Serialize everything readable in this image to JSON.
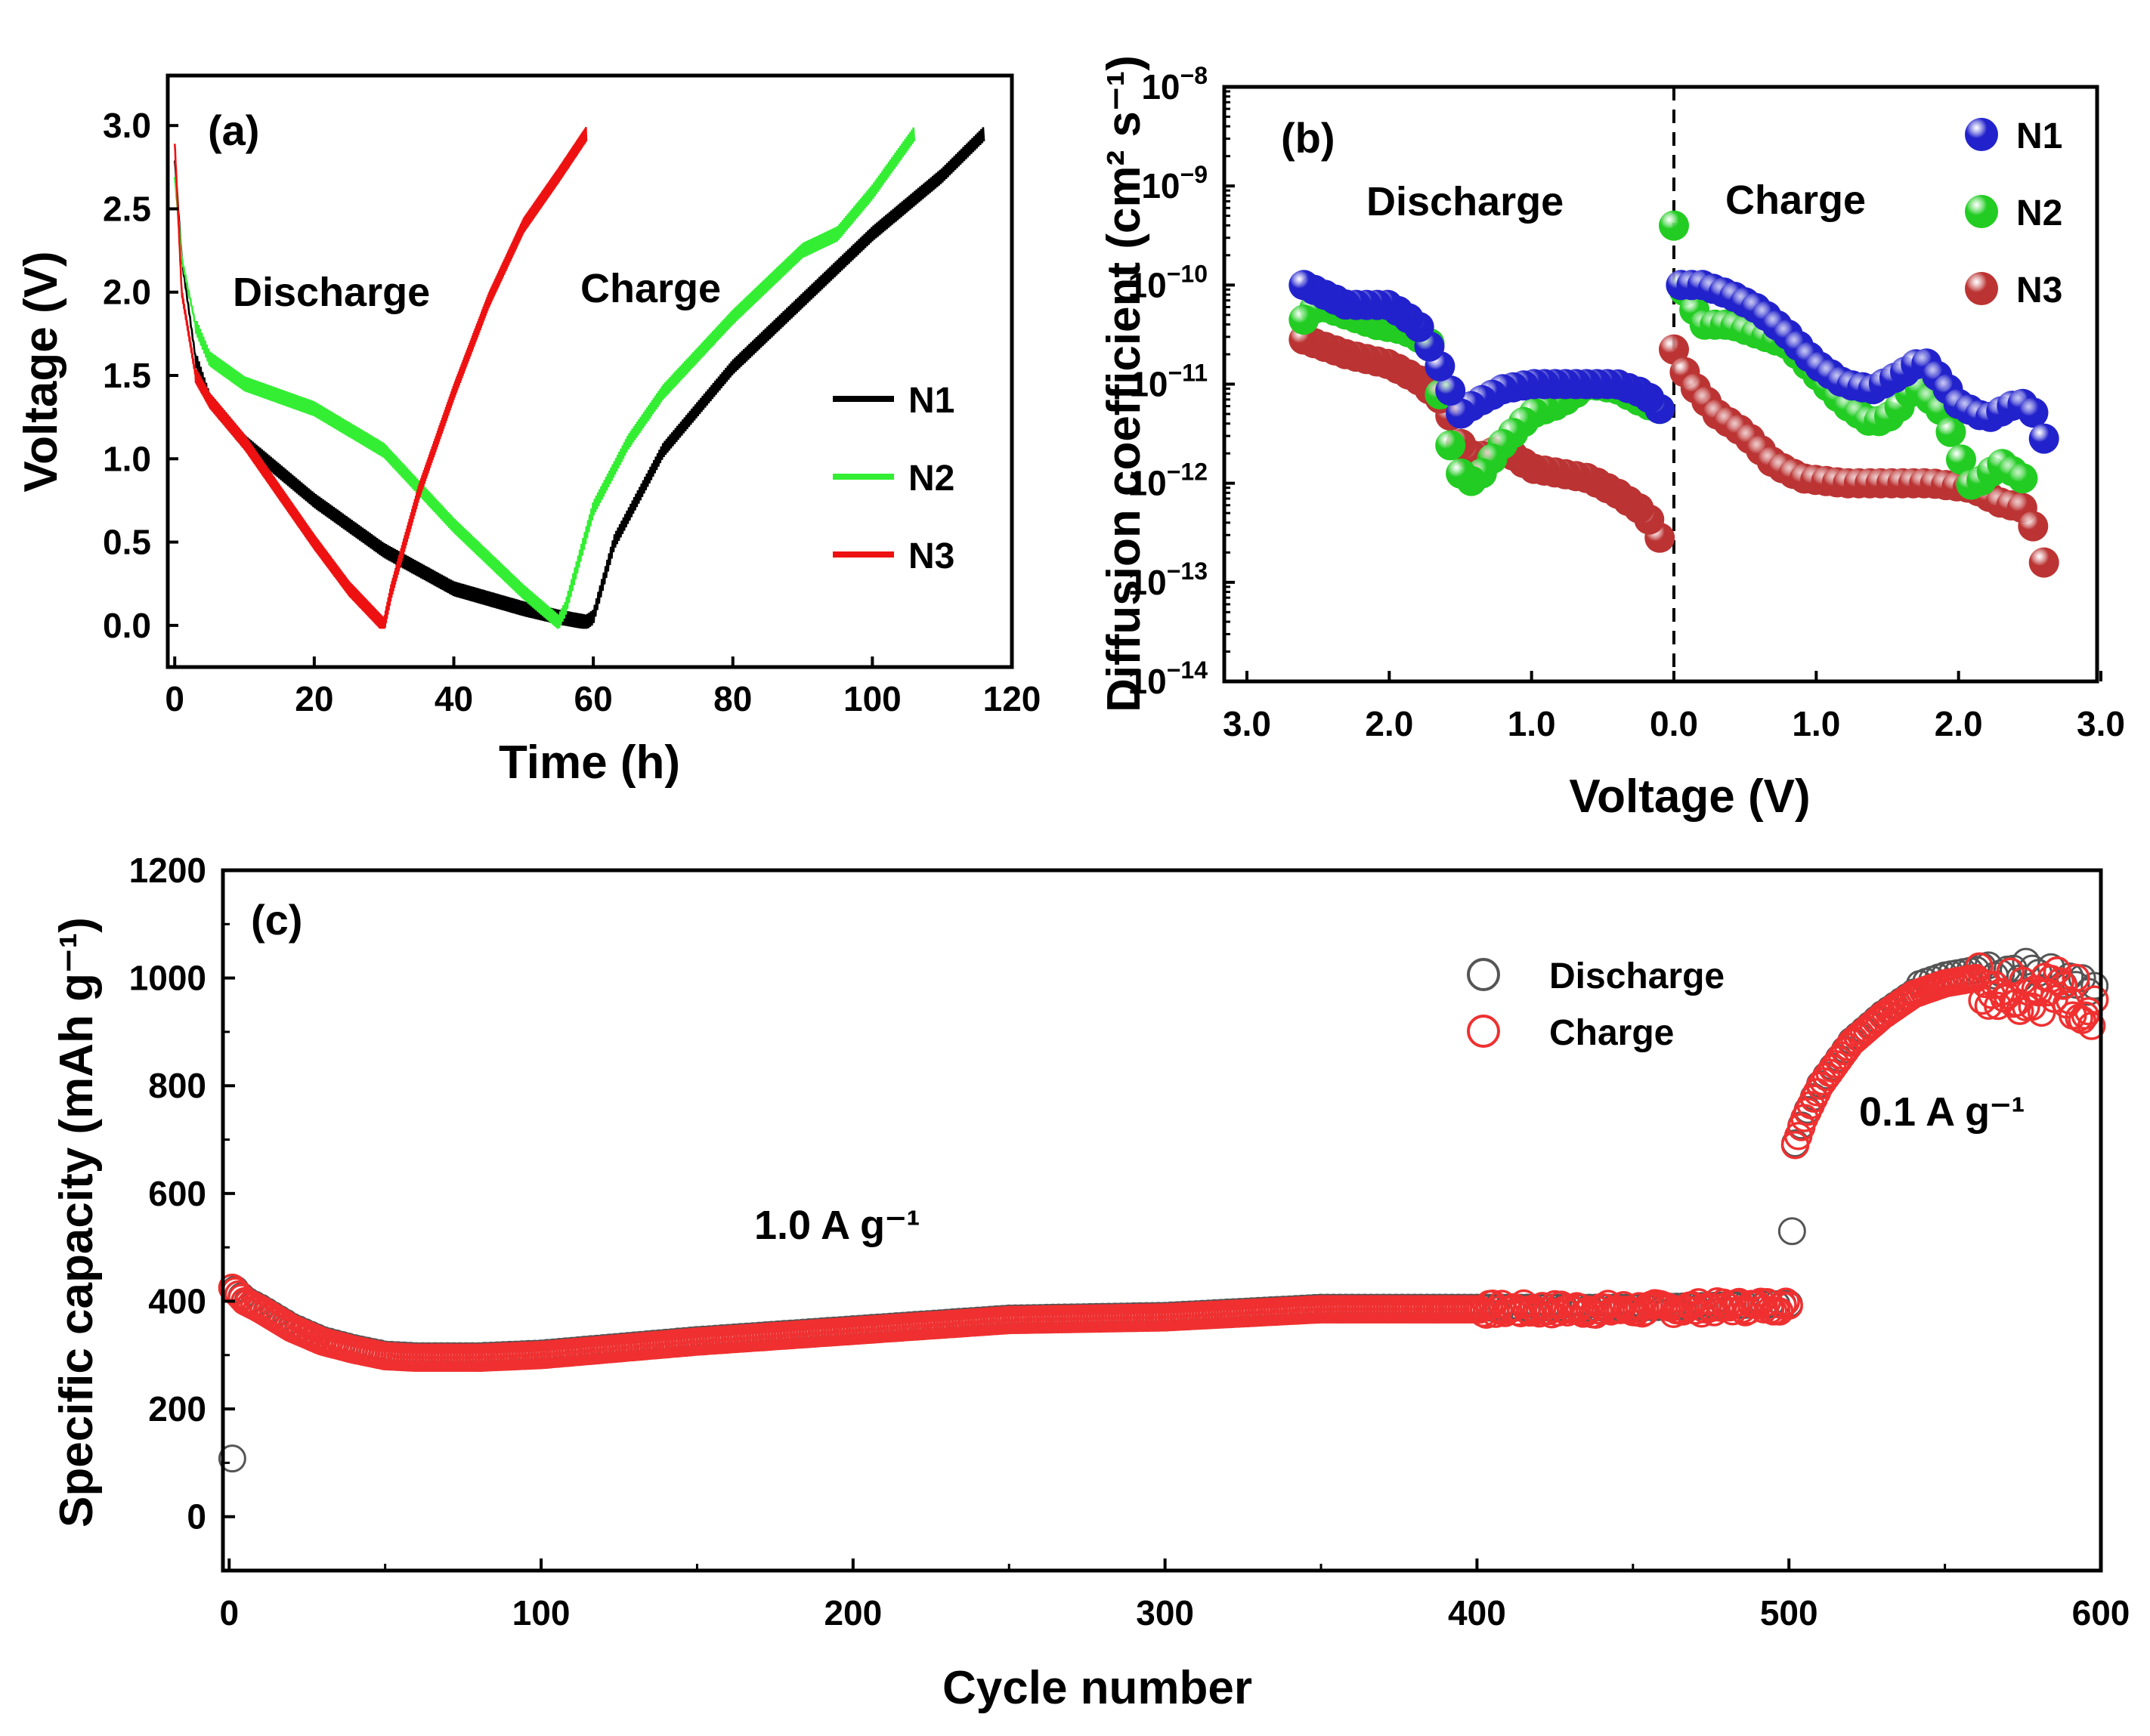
{
  "chart_data": [
    {
      "panel": "(a)",
      "type": "line",
      "xlabel": "Time (h)",
      "ylabel": "Voltage (V)",
      "xlim": [
        -1,
        120
      ],
      "ylim": [
        -0.25,
        3.3
      ],
      "xticks": [
        0,
        20,
        40,
        60,
        80,
        100,
        120
      ],
      "yticks": [
        0.0,
        0.5,
        1.0,
        1.5,
        2.0,
        2.5,
        3.0
      ],
      "ytick_labels": [
        "0.0",
        "0.5",
        "1.0",
        "1.5",
        "2.0",
        "2.5",
        "3.0"
      ],
      "annotations": [
        "Discharge",
        "Charge"
      ],
      "legend": [
        "N1",
        "N2",
        "N3"
      ],
      "series": [
        {
          "name": "N1",
          "color": "#000000",
          "x": [
            0,
            1,
            3,
            5,
            10,
            20,
            30,
            40,
            50,
            55,
            59,
            60,
            63,
            70,
            80,
            90,
            100,
            110,
            116
          ],
          "y": [
            2.8,
            2.2,
            1.6,
            1.35,
            1.1,
            0.75,
            0.45,
            0.22,
            0.1,
            0.05,
            0.02,
            0.05,
            0.5,
            1.05,
            1.55,
            1.95,
            2.35,
            2.7,
            2.95
          ]
        },
        {
          "name": "N2",
          "color": "#33ee33",
          "x": [
            0,
            1,
            3,
            5,
            10,
            20,
            30,
            40,
            50,
            55,
            56,
            60,
            65,
            70,
            80,
            90,
            95,
            100,
            106
          ],
          "y": [
            2.7,
            2.2,
            1.8,
            1.6,
            1.45,
            1.3,
            1.05,
            0.6,
            0.2,
            0.02,
            0.1,
            0.7,
            1.1,
            1.4,
            1.85,
            2.25,
            2.35,
            2.6,
            2.95
          ]
        },
        {
          "name": "N3",
          "color": "#ee1111",
          "x": [
            0,
            1,
            3,
            5,
            10,
            15,
            20,
            25,
            30,
            31,
            35,
            40,
            45,
            50,
            55,
            59
          ],
          "y": [
            2.9,
            2.0,
            1.5,
            1.35,
            1.1,
            0.8,
            0.5,
            0.22,
            0.0,
            0.2,
            0.8,
            1.4,
            1.95,
            2.4,
            2.7,
            2.95
          ]
        }
      ]
    },
    {
      "panel": "(b)",
      "type": "scatter",
      "xlabel": "Voltage (V)",
      "ylabel": "Diffusion coefficient (cm² s⁻¹)",
      "yscale": "log",
      "ylim": [
        -14,
        -8
      ],
      "ytick_exponents": [
        -8,
        -9,
        -10,
        -11,
        -12,
        -13,
        -14
      ],
      "ytick_base": "10",
      "xtick_labels": [
        "3.0",
        "2.0",
        "1.0",
        "0.0",
        "1.0",
        "2.0",
        "3.0"
      ],
      "xlim_note": "discharge side reversed 3.0→0.0, charge side 0.0→3.0",
      "annotations": [
        "Discharge",
        "Charge"
      ],
      "legend": [
        "N1",
        "N2",
        "N3"
      ],
      "series": [
        {
          "name": "N1",
          "color": "#2222cc",
          "discharge": {
            "v": [
              2.6,
              2.3,
              2.0,
              1.8,
              1.65,
              1.5,
              1.4,
              1.2,
              1.0,
              0.8,
              0.6,
              0.4,
              0.2,
              0.1
            ],
            "logD": [
              -10.0,
              -10.2,
              -10.2,
              -10.4,
              -10.8,
              -11.3,
              -11.2,
              -11.05,
              -11.0,
              -11.0,
              -11.0,
              -11.0,
              -11.1,
              -11.25
            ]
          },
          "charge": {
            "v": [
              0.05,
              0.2,
              0.4,
              0.6,
              0.8,
              1.0,
              1.2,
              1.4,
              1.6,
              1.75,
              1.9,
              2.0,
              2.2,
              2.4,
              2.5,
              2.6
            ],
            "logD": [
              -10.0,
              -10.0,
              -10.1,
              -10.25,
              -10.5,
              -10.8,
              -11.0,
              -11.05,
              -10.9,
              -10.75,
              -11.0,
              -11.2,
              -11.35,
              -11.2,
              -11.2,
              -11.55
            ]
          }
        },
        {
          "name": "N2",
          "color": "#22cc22",
          "discharge": {
            "v": [
              2.6,
              2.5,
              2.3,
              2.1,
              1.9,
              1.7,
              1.6,
              1.5,
              1.4,
              1.2,
              1.0,
              0.8,
              0.6,
              0.4,
              0.2,
              0.1
            ],
            "logD": [
              -10.35,
              -10.2,
              -10.3,
              -10.4,
              -10.45,
              -10.6,
              -11.5,
              -11.9,
              -12.0,
              -11.6,
              -11.3,
              -11.2,
              -11.0,
              -11.05,
              -11.2,
              -11.25
            ]
          },
          "charge": {
            "v": [
              0.0,
              0.05,
              0.2,
              0.4,
              0.6,
              0.8,
              1.0,
              1.2,
              1.4,
              1.55,
              1.7,
              1.9,
              2.0,
              2.1,
              2.3,
              2.45
            ],
            "logD": [
              -9.4,
              -10.0,
              -10.4,
              -10.4,
              -10.5,
              -10.6,
              -10.9,
              -11.2,
              -11.4,
              -11.3,
              -11.0,
              -11.3,
              -11.7,
              -12.05,
              -11.8,
              -11.95
            ]
          }
        },
        {
          "name": "N3",
          "color": "#bb3333",
          "discharge": {
            "v": [
              2.6,
              2.3,
              2.0,
              1.8,
              1.6,
              1.5,
              1.4,
              1.2,
              1.0,
              0.8,
              0.6,
              0.4,
              0.2,
              0.1
            ],
            "logD": [
              -10.55,
              -10.7,
              -10.8,
              -10.95,
              -11.2,
              -11.6,
              -11.75,
              -11.65,
              -11.85,
              -11.9,
              -11.95,
              -12.1,
              -12.3,
              -12.55
            ]
          },
          "charge": {
            "v": [
              0.0,
              0.1,
              0.3,
              0.5,
              0.7,
              0.9,
              1.2,
              1.5,
              1.8,
              2.1,
              2.3,
              2.45,
              2.55,
              2.6
            ],
            "logD": [
              -10.65,
              -10.95,
              -11.3,
              -11.5,
              -11.8,
              -11.95,
              -12.0,
              -12.0,
              -12.0,
              -12.05,
              -12.2,
              -12.25,
              -12.5,
              -12.8
            ]
          }
        }
      ]
    },
    {
      "panel": "(c)",
      "type": "scatter",
      "xlabel": "Cycle number",
      "ylabel": "Specific capacity (mAh g⁻¹)",
      "xlim": [
        -2,
        600
      ],
      "ylim": [
        -100,
        1200
      ],
      "xticks": [
        0,
        100,
        200,
        300,
        400,
        500,
        600
      ],
      "yticks": [
        0,
        200,
        400,
        600,
        800,
        1000,
        1200
      ],
      "annotations": [
        "1.0 A g⁻¹",
        "0.1 A g⁻¹"
      ],
      "legend": [
        "Discharge",
        "Charge"
      ],
      "discharge_outliers": [
        {
          "x": 1,
          "y": 108
        },
        {
          "x": 501,
          "y": 530
        }
      ],
      "capacity_profile": {
        "cycles": [
          1,
          5,
          10,
          20,
          30,
          40,
          50,
          60,
          80,
          100,
          150,
          200,
          250,
          300,
          350,
          400,
          450,
          500,
          502,
          505,
          510,
          520,
          530,
          540,
          550,
          560,
          570,
          580,
          590,
          598
        ],
        "capacity": [
          425,
          400,
          385,
          350,
          325,
          310,
          298,
          295,
          295,
          300,
          325,
          345,
          365,
          370,
          385,
          385,
          385,
          392,
          690,
          740,
          800,
          880,
          930,
          970,
          990,
          1000,
          995,
          990,
          980,
          960
        ]
      },
      "colors": {
        "discharge": "#555555",
        "charge": "#f03030"
      }
    }
  ]
}
